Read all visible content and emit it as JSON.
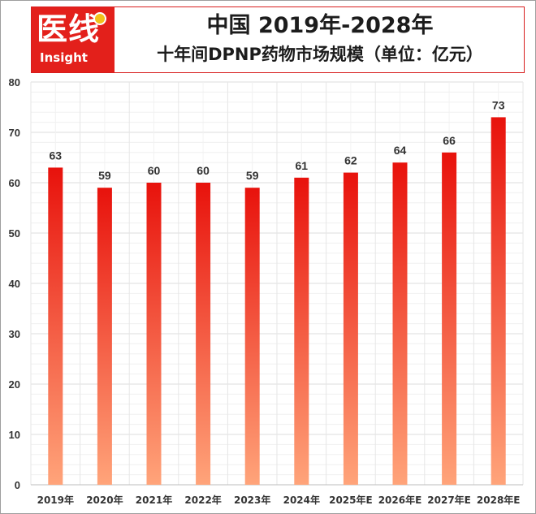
{
  "header": {
    "logo_cn": "医线",
    "logo_en": "Insight",
    "title": "中国 2019年-2028年",
    "subtitle": "十年间DPNP药物市场规模（单位：亿元）"
  },
  "colors": {
    "brand_red": "#e3201b",
    "bar_top": "#e8120c",
    "bar_bottom": "#ffa47a",
    "grid": "#e6e6e6"
  },
  "chart_data": {
    "type": "bar",
    "categories": [
      "2019年",
      "2020年",
      "2021年",
      "2022年",
      "2023年",
      "2024年",
      "2025年E",
      "2026年E",
      "2027年E",
      "2028年E"
    ],
    "values": [
      63,
      59,
      60,
      60,
      59,
      61,
      62,
      64,
      66,
      73
    ],
    "ylim": [
      0,
      80
    ],
    "yticks": [
      0,
      10,
      20,
      30,
      40,
      50,
      60,
      70,
      80
    ],
    "grid": true,
    "data_labels": true
  }
}
